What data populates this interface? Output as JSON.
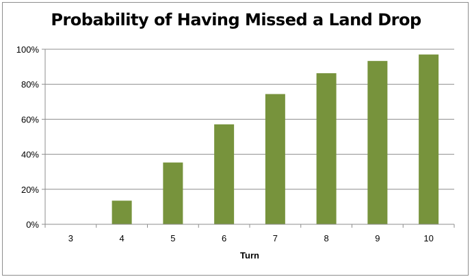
{
  "chart_data": {
    "type": "bar",
    "title": "Probability of Having Missed a Land Drop",
    "xlabel": "Turn",
    "ylabel": "",
    "categories": [
      "3",
      "4",
      "5",
      "6",
      "7",
      "8",
      "9",
      "10"
    ],
    "values": [
      0,
      13.5,
      35.3,
      57.1,
      74.4,
      86.3,
      93.3,
      97.0
    ],
    "ylim": [
      0,
      100
    ],
    "y_ticks": [
      "0%",
      "20%",
      "40%",
      "60%",
      "80%",
      "100%"
    ],
    "y_tick_values": [
      0,
      20,
      40,
      60,
      80,
      100
    ],
    "bar_color": "#77933c",
    "grid": true,
    "legend": "none"
  }
}
